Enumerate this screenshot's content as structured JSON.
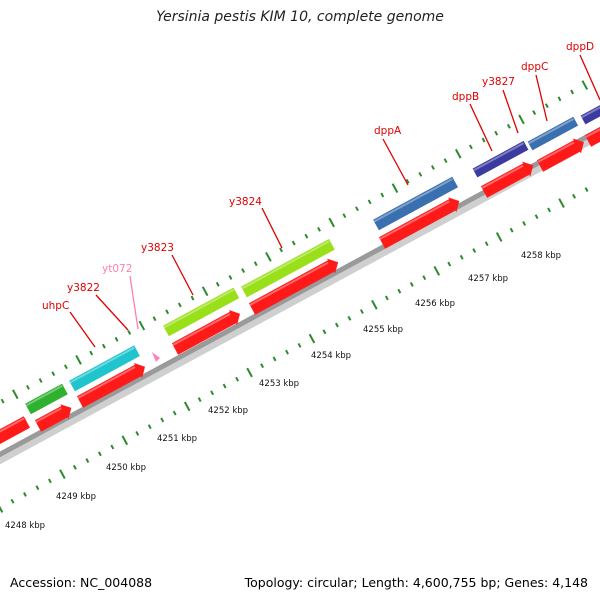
{
  "title": "Yersinia pestis KIM 10, complete genome",
  "footer": {
    "accession": "Accession: NC_004088",
    "summary": "Topology: circular; Length: 4,600,755 bp; Genes: 4,148"
  },
  "colors": {
    "backbone": "#9a9a9a",
    "cds": "#ff1a1a",
    "tick": "#2d8a2d",
    "label": "#e00000",
    "label_trna": "#ff80b0"
  },
  "scale": {
    "ticks": [
      "4248 kbp",
      "4249 kbp",
      "4250 kbp",
      "4251 kbp",
      "4252 kbp",
      "4253 kbp",
      "4254 kbp",
      "4255 kbp",
      "4256 kbp",
      "4257 kbp",
      "4258 kbp"
    ]
  },
  "gene_labels": [
    "uhpC",
    "y3822",
    "yt072",
    "y3823",
    "y3824",
    "dppA",
    "dppB",
    "y3827",
    "dppC",
    "dppD"
  ]
}
